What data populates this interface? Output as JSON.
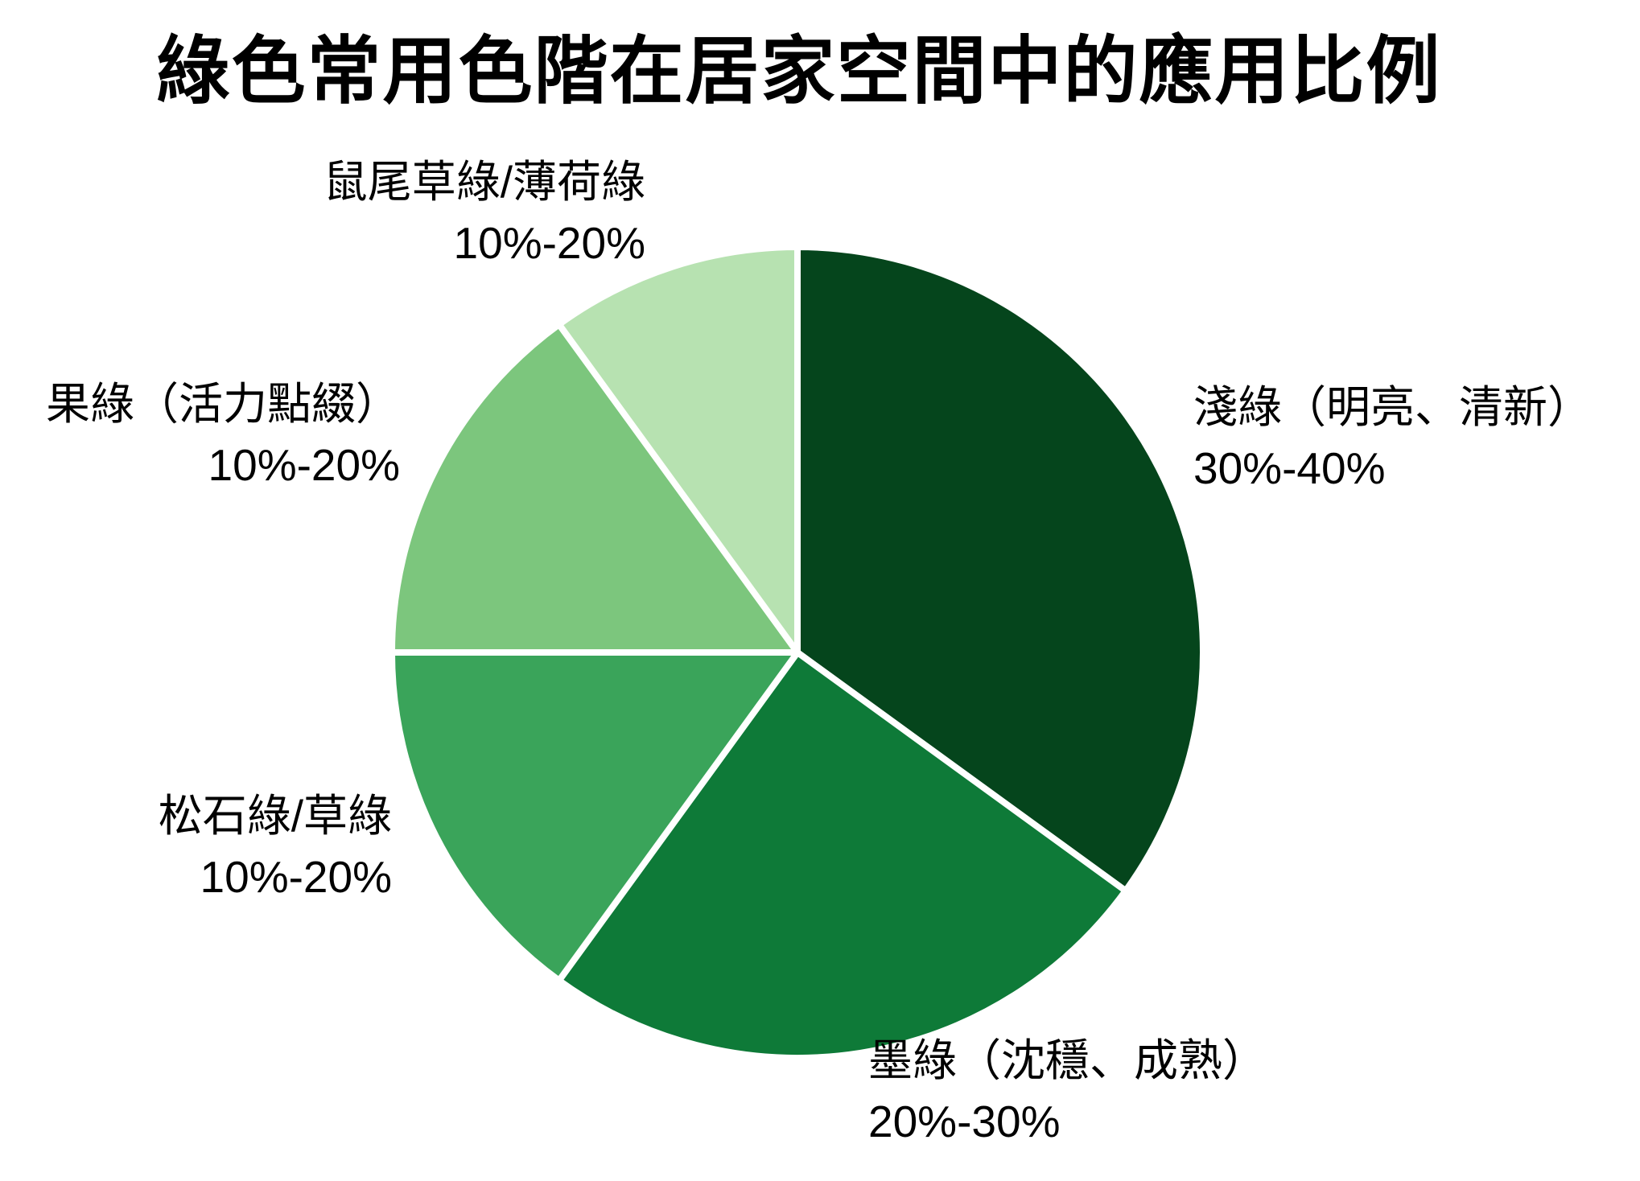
{
  "chart_data": {
    "type": "pie",
    "title": "綠色常用色階在居家空間中的應用比例",
    "start_angle": "12-o'clock",
    "direction": "clockwise",
    "background_color": "#ffffff",
    "border_color": "#ffffff",
    "text_color": "#000000",
    "legend_position": "none",
    "slices": [
      {
        "name": "淺綠（明亮、清新）",
        "range_label": "30%-40%",
        "value_pct": 35,
        "color": "#05451c"
      },
      {
        "name": "墨綠（沈穩、成熟）",
        "range_label": "20%-30%",
        "value_pct": 25,
        "color": "#0e7a38"
      },
      {
        "name": "松石綠/草綠",
        "range_label": "10%-20%",
        "value_pct": 15,
        "color": "#3aa45a"
      },
      {
        "name": "果綠（活力點綴）",
        "range_label": "10%-20%",
        "value_pct": 15,
        "color": "#7cc67d"
      },
      {
        "name": "鼠尾草綠/薄荷綠",
        "range_label": "10%-20%",
        "value_pct": 10,
        "color": "#b7e2b1"
      }
    ]
  }
}
